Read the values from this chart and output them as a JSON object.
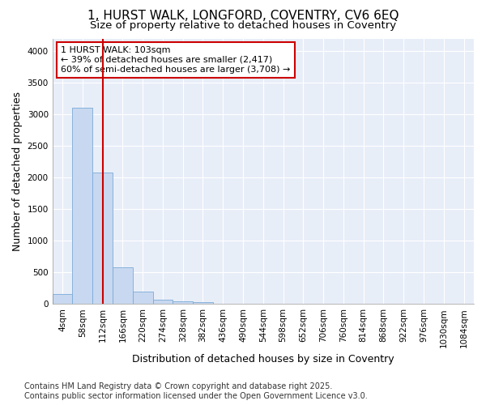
{
  "title_line1": "1, HURST WALK, LONGFORD, COVENTRY, CV6 6EQ",
  "title_line2": "Size of property relative to detached houses in Coventry",
  "xlabel": "Distribution of detached houses by size in Coventry",
  "ylabel": "Number of detached properties",
  "footer_line1": "Contains HM Land Registry data © Crown copyright and database right 2025.",
  "footer_line2": "Contains public sector information licensed under the Open Government Licence v3.0.",
  "bin_labels": [
    "4sqm",
    "58sqm",
    "112sqm",
    "166sqm",
    "220sqm",
    "274sqm",
    "328sqm",
    "382sqm",
    "436sqm",
    "490sqm",
    "544sqm",
    "598sqm",
    "652sqm",
    "706sqm",
    "760sqm",
    "814sqm",
    "868sqm",
    "922sqm",
    "976sqm",
    "1030sqm",
    "1084sqm"
  ],
  "bar_values": [
    150,
    3100,
    2080,
    580,
    200,
    70,
    40,
    30,
    0,
    0,
    0,
    0,
    0,
    0,
    0,
    0,
    0,
    0,
    0,
    0,
    0
  ],
  "bar_color": "#c8d8f0",
  "bar_edge_color": "#7aaad8",
  "property_line_x": 2.0,
  "vline_color": "#cc0000",
  "annotation_text": "1 HURST WALK: 103sqm\n← 39% of detached houses are smaller (2,417)\n60% of semi-detached houses are larger (3,708) →",
  "annotation_box_color": "#cc0000",
  "annotation_box_fill": "#ffffff",
  "ylim": [
    0,
    4200
  ],
  "yticks": [
    0,
    500,
    1000,
    1500,
    2000,
    2500,
    3000,
    3500,
    4000
  ],
  "background_color": "#ffffff",
  "plot_bg_color": "#e8eef8",
  "grid_color": "#ffffff",
  "title_fontsize": 11,
  "subtitle_fontsize": 9.5,
  "axis_label_fontsize": 9,
  "tick_fontsize": 7.5,
  "footer_fontsize": 7
}
